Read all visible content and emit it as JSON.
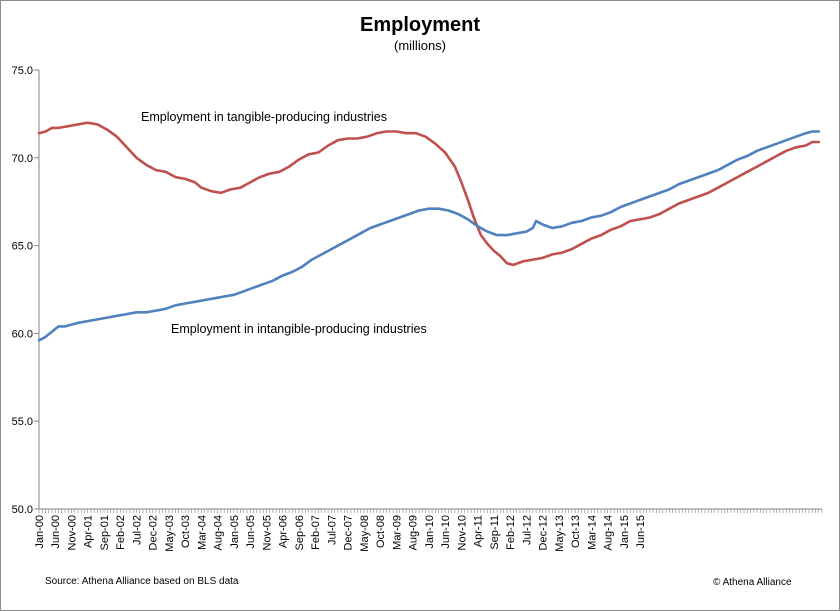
{
  "chart_data": {
    "type": "line",
    "title": "Employment",
    "subtitle": "(millions)",
    "ylim": [
      50.0,
      75.0
    ],
    "yticks": [
      "50.0",
      "55.0",
      "60.0",
      "65.0",
      "70.0",
      "75.0"
    ],
    "xticks": [
      "Jan-00",
      "Jun-00",
      "Nov-00",
      "Apr-01",
      "Sep-01",
      "Feb-02",
      "Jul-02",
      "Dec-02",
      "May-03",
      "Oct-03",
      "Mar-04",
      "Aug-04",
      "Jan-05",
      "Jun-05",
      "Nov-05",
      "Apr-06",
      "Sep-06",
      "Feb-07",
      "Jul-07",
      "Dec-07",
      "May-08",
      "Oct-08",
      "Mar-09",
      "Aug-09",
      "Jan-10",
      "Jun-10",
      "Nov-10",
      "Apr-11",
      "Sep-11",
      "Feb-12",
      "Jul-12",
      "Dec-12",
      "May-13",
      "Oct-13",
      "Mar-14",
      "Aug-14",
      "Jan-15",
      "Jun-15"
    ],
    "grid": false,
    "series": [
      {
        "name": "Employment in tangible-producing industries",
        "color": "#c0504d",
        "points": [
          [
            0,
            71.4
          ],
          [
            2,
            71.5
          ],
          [
            4,
            71.7
          ],
          [
            6,
            71.7
          ],
          [
            9,
            71.8
          ],
          [
            12,
            71.9
          ],
          [
            15,
            72.0
          ],
          [
            18,
            71.9
          ],
          [
            21,
            71.6
          ],
          [
            24,
            71.2
          ],
          [
            27,
            70.6
          ],
          [
            30,
            70.0
          ],
          [
            33,
            69.6
          ],
          [
            36,
            69.3
          ],
          [
            39,
            69.2
          ],
          [
            42,
            68.9
          ],
          [
            45,
            68.8
          ],
          [
            48,
            68.6
          ],
          [
            50,
            68.3
          ],
          [
            53,
            68.1
          ],
          [
            56,
            68.0
          ],
          [
            59,
            68.2
          ],
          [
            62,
            68.3
          ],
          [
            65,
            68.6
          ],
          [
            68,
            68.9
          ],
          [
            71,
            69.1
          ],
          [
            74,
            69.2
          ],
          [
            77,
            69.5
          ],
          [
            80,
            69.9
          ],
          [
            83,
            70.2
          ],
          [
            86,
            70.3
          ],
          [
            89,
            70.7
          ],
          [
            92,
            71.0
          ],
          [
            95,
            71.1
          ],
          [
            98,
            71.1
          ],
          [
            101,
            71.2
          ],
          [
            104,
            71.4
          ],
          [
            107,
            71.5
          ],
          [
            110,
            71.5
          ],
          [
            113,
            71.4
          ],
          [
            116,
            71.4
          ],
          [
            119,
            71.2
          ],
          [
            122,
            70.8
          ],
          [
            125,
            70.3
          ],
          [
            128,
            69.5
          ],
          [
            130,
            68.6
          ],
          [
            132,
            67.6
          ],
          [
            134,
            66.5
          ],
          [
            136,
            65.6
          ],
          [
            138,
            65.1
          ],
          [
            140,
            64.7
          ],
          [
            142,
            64.4
          ],
          [
            144,
            64.0
          ],
          [
            146,
            63.9
          ],
          [
            149,
            64.1
          ],
          [
            152,
            64.2
          ],
          [
            155,
            64.3
          ],
          [
            158,
            64.5
          ],
          [
            161,
            64.6
          ],
          [
            164,
            64.8
          ],
          [
            167,
            65.1
          ],
          [
            170,
            65.4
          ],
          [
            173,
            65.6
          ],
          [
            176,
            65.9
          ],
          [
            179,
            66.1
          ],
          [
            182,
            66.4
          ],
          [
            185,
            66.5
          ],
          [
            188,
            66.6
          ],
          [
            191,
            66.8
          ],
          [
            194,
            67.1
          ],
          [
            197,
            67.4
          ],
          [
            200,
            67.6
          ],
          [
            203,
            67.8
          ],
          [
            206,
            68.0
          ],
          [
            209,
            68.3
          ],
          [
            212,
            68.6
          ],
          [
            215,
            68.9
          ],
          [
            218,
            69.2
          ],
          [
            221,
            69.5
          ],
          [
            224,
            69.8
          ],
          [
            227,
            70.1
          ],
          [
            230,
            70.4
          ],
          [
            233,
            70.6
          ],
          [
            236,
            70.7
          ],
          [
            238,
            70.9
          ],
          [
            240,
            70.9
          ]
        ]
      },
      {
        "name": "Employment in intangible-producing industries",
        "color": "#4f81bd",
        "points": [
          [
            0,
            59.6
          ],
          [
            2,
            59.8
          ],
          [
            4,
            60.1
          ],
          [
            6,
            60.4
          ],
          [
            8,
            60.4
          ],
          [
            10,
            60.5
          ],
          [
            12,
            60.6
          ],
          [
            15,
            60.7
          ],
          [
            18,
            60.8
          ],
          [
            21,
            60.9
          ],
          [
            24,
            61.0
          ],
          [
            27,
            61.1
          ],
          [
            30,
            61.2
          ],
          [
            33,
            61.2
          ],
          [
            36,
            61.3
          ],
          [
            39,
            61.4
          ],
          [
            42,
            61.6
          ],
          [
            45,
            61.7
          ],
          [
            48,
            61.8
          ],
          [
            51,
            61.9
          ],
          [
            54,
            62.0
          ],
          [
            57,
            62.1
          ],
          [
            60,
            62.2
          ],
          [
            63,
            62.4
          ],
          [
            66,
            62.6
          ],
          [
            69,
            62.8
          ],
          [
            72,
            63.0
          ],
          [
            75,
            63.3
          ],
          [
            78,
            63.5
          ],
          [
            81,
            63.8
          ],
          [
            84,
            64.2
          ],
          [
            87,
            64.5
          ],
          [
            90,
            64.8
          ],
          [
            93,
            65.1
          ],
          [
            96,
            65.4
          ],
          [
            99,
            65.7
          ],
          [
            102,
            66.0
          ],
          [
            105,
            66.2
          ],
          [
            108,
            66.4
          ],
          [
            111,
            66.6
          ],
          [
            114,
            66.8
          ],
          [
            117,
            67.0
          ],
          [
            120,
            67.1
          ],
          [
            123,
            67.1
          ],
          [
            126,
            67.0
          ],
          [
            129,
            66.8
          ],
          [
            132,
            66.5
          ],
          [
            135,
            66.1
          ],
          [
            138,
            65.8
          ],
          [
            141,
            65.6
          ],
          [
            144,
            65.6
          ],
          [
            147,
            65.7
          ],
          [
            150,
            65.8
          ],
          [
            152,
            66.0
          ],
          [
            153,
            66.4
          ],
          [
            155,
            66.2
          ],
          [
            158,
            66.0
          ],
          [
            161,
            66.1
          ],
          [
            164,
            66.3
          ],
          [
            167,
            66.4
          ],
          [
            170,
            66.6
          ],
          [
            173,
            66.7
          ],
          [
            176,
            66.9
          ],
          [
            179,
            67.2
          ],
          [
            182,
            67.4
          ],
          [
            185,
            67.6
          ],
          [
            188,
            67.8
          ],
          [
            191,
            68.0
          ],
          [
            194,
            68.2
          ],
          [
            197,
            68.5
          ],
          [
            200,
            68.7
          ],
          [
            203,
            68.9
          ],
          [
            206,
            69.1
          ],
          [
            209,
            69.3
          ],
          [
            212,
            69.6
          ],
          [
            215,
            69.9
          ],
          [
            218,
            70.1
          ],
          [
            221,
            70.4
          ],
          [
            224,
            70.6
          ],
          [
            227,
            70.8
          ],
          [
            230,
            71.0
          ],
          [
            233,
            71.2
          ],
          [
            236,
            71.4
          ],
          [
            238,
            71.5
          ],
          [
            240,
            71.5
          ]
        ]
      }
    ],
    "annotations": [
      "Employment in tangible-producing industries",
      "Employment in intangible-producing industries"
    ],
    "source": "Source: Athena Alliance based on BLS data",
    "copyright": "© Athena Alliance"
  }
}
